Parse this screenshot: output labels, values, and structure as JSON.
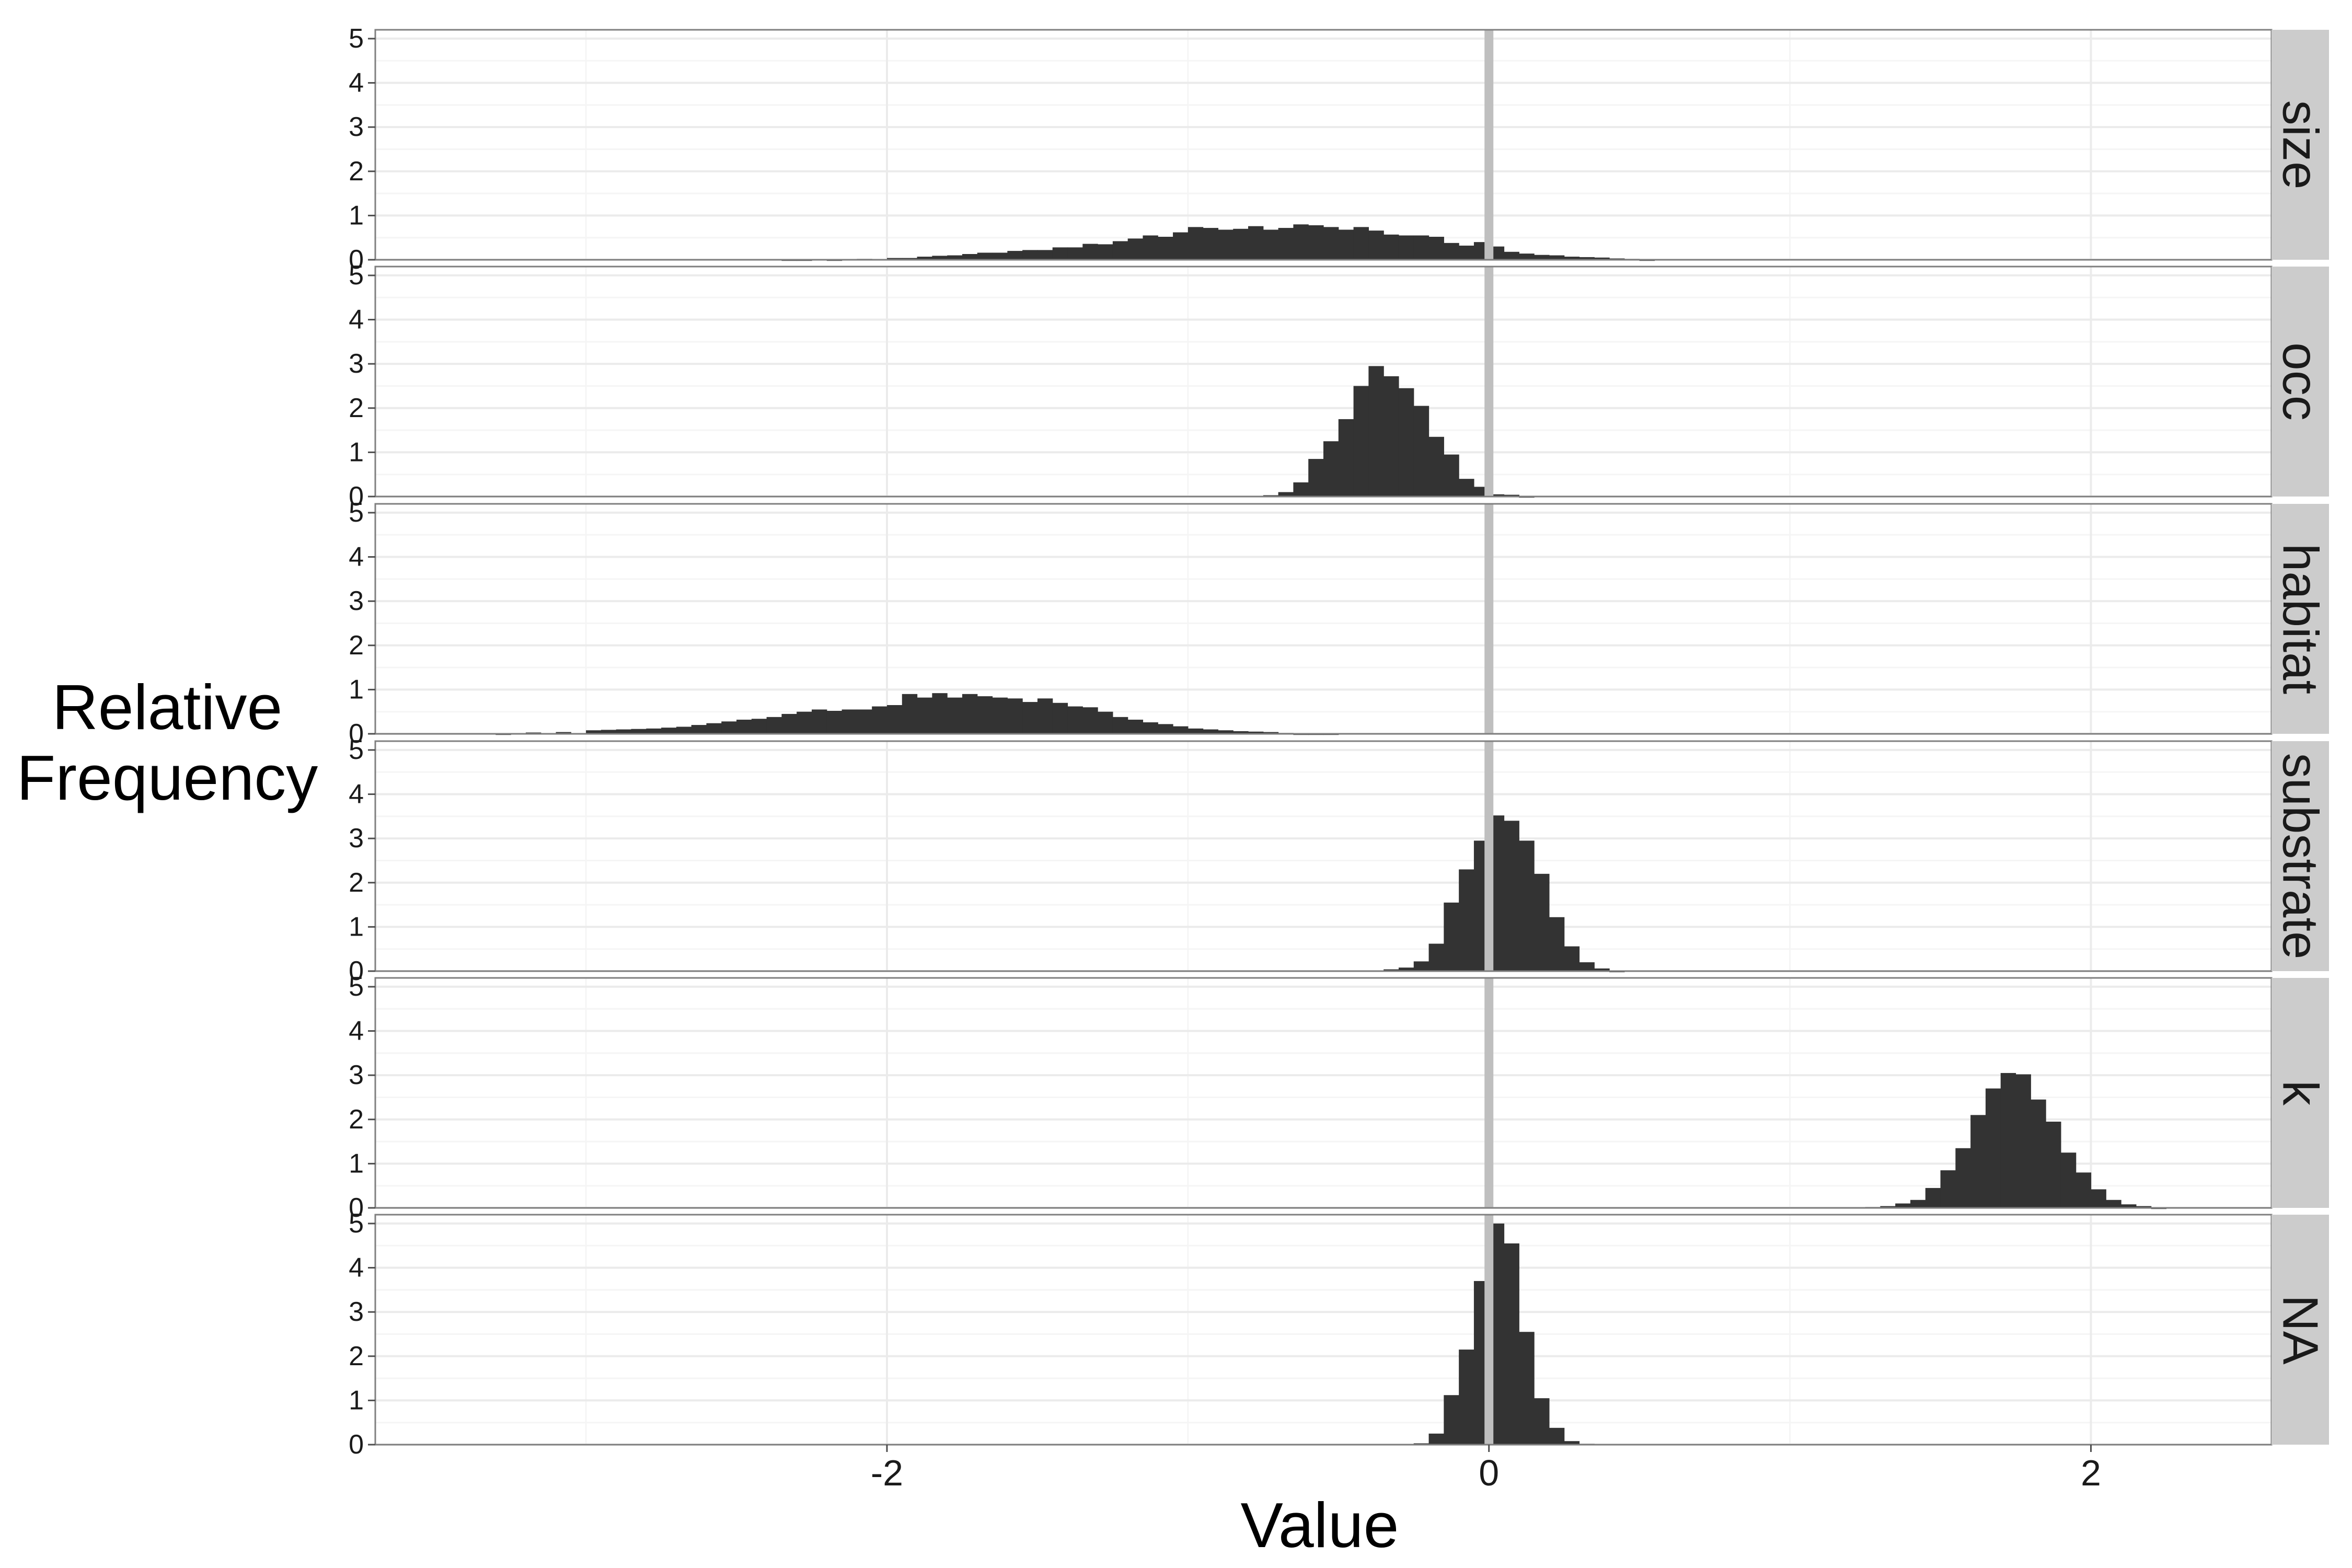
{
  "chart_data": {
    "type": "histogram",
    "facet_layout": "stacked vertically, shared x axis",
    "xlabel": "Value",
    "ylabel": "Relative Frequency",
    "xlim": [
      -3.7,
      2.6
    ],
    "ylim": [
      0,
      5.2
    ],
    "x_ticks": [
      -2,
      0,
      2
    ],
    "y_ticks": [
      0,
      1,
      2,
      3,
      4,
      5
    ],
    "reference_line_x": 0,
    "bin_width": 0.05,
    "grid": true,
    "colors": {
      "bars": "#333333",
      "reference_line": "#bfbfbf",
      "strip_background": "#cccccc",
      "grid_major": "#ebebeb",
      "grid_minor": "#f5f5f5"
    },
    "panels": [
      {
        "label": "size",
        "bins": [
          [
            -2.35,
            0.01
          ],
          [
            -2.3,
            0.01
          ],
          [
            -2.2,
            0.01
          ],
          [
            -2.1,
            0.02
          ],
          [
            -2.0,
            0.04
          ],
          [
            -1.95,
            0.04
          ],
          [
            -1.9,
            0.07
          ],
          [
            -1.85,
            0.09
          ],
          [
            -1.8,
            0.1
          ],
          [
            -1.75,
            0.13
          ],
          [
            -1.7,
            0.16
          ],
          [
            -1.65,
            0.16
          ],
          [
            -1.6,
            0.2
          ],
          [
            -1.55,
            0.22
          ],
          [
            -1.5,
            0.22
          ],
          [
            -1.45,
            0.28
          ],
          [
            -1.4,
            0.28
          ],
          [
            -1.35,
            0.36
          ],
          [
            -1.3,
            0.35
          ],
          [
            -1.25,
            0.42
          ],
          [
            -1.2,
            0.48
          ],
          [
            -1.15,
            0.55
          ],
          [
            -1.1,
            0.52
          ],
          [
            -1.05,
            0.62
          ],
          [
            -1.0,
            0.74
          ],
          [
            -0.95,
            0.72
          ],
          [
            -0.9,
            0.68
          ],
          [
            -0.85,
            0.7
          ],
          [
            -0.8,
            0.76
          ],
          [
            -0.75,
            0.68
          ],
          [
            -0.7,
            0.72
          ],
          [
            -0.65,
            0.8
          ],
          [
            -0.6,
            0.78
          ],
          [
            -0.55,
            0.74
          ],
          [
            -0.5,
            0.68
          ],
          [
            -0.45,
            0.74
          ],
          [
            -0.4,
            0.66
          ],
          [
            -0.35,
            0.57
          ],
          [
            -0.3,
            0.55
          ],
          [
            -0.25,
            0.55
          ],
          [
            -0.2,
            0.52
          ],
          [
            -0.15,
            0.38
          ],
          [
            -0.1,
            0.32
          ],
          [
            -0.05,
            0.4
          ],
          [
            0.0,
            0.3
          ],
          [
            0.05,
            0.18
          ],
          [
            0.1,
            0.14
          ],
          [
            0.15,
            0.11
          ],
          [
            0.2,
            0.1
          ],
          [
            0.25,
            0.07
          ],
          [
            0.3,
            0.06
          ],
          [
            0.35,
            0.05
          ],
          [
            0.4,
            0.03
          ],
          [
            0.45,
            0.02
          ],
          [
            0.5,
            0.01
          ]
        ]
      },
      {
        "label": "occ",
        "bins": [
          [
            -0.75,
            0.03
          ],
          [
            -0.7,
            0.1
          ],
          [
            -0.65,
            0.32
          ],
          [
            -0.6,
            0.85
          ],
          [
            -0.55,
            1.25
          ],
          [
            -0.5,
            1.75
          ],
          [
            -0.45,
            2.5
          ],
          [
            -0.4,
            2.95
          ],
          [
            -0.35,
            2.72
          ],
          [
            -0.3,
            2.45
          ],
          [
            -0.25,
            2.05
          ],
          [
            -0.2,
            1.35
          ],
          [
            -0.15,
            0.95
          ],
          [
            -0.1,
            0.4
          ],
          [
            -0.05,
            0.22
          ],
          [
            0.0,
            0.05
          ],
          [
            0.05,
            0.04
          ],
          [
            0.1,
            0.01
          ]
        ]
      },
      {
        "label": "habitat",
        "bins": [
          [
            -3.3,
            0.01
          ],
          [
            -3.2,
            0.03
          ],
          [
            -3.1,
            0.04
          ],
          [
            -3.0,
            0.08
          ],
          [
            -2.95,
            0.09
          ],
          [
            -2.9,
            0.1
          ],
          [
            -2.85,
            0.11
          ],
          [
            -2.8,
            0.12
          ],
          [
            -2.75,
            0.14
          ],
          [
            -2.7,
            0.16
          ],
          [
            -2.65,
            0.2
          ],
          [
            -2.6,
            0.24
          ],
          [
            -2.55,
            0.28
          ],
          [
            -2.5,
            0.32
          ],
          [
            -2.45,
            0.34
          ],
          [
            -2.4,
            0.38
          ],
          [
            -2.35,
            0.45
          ],
          [
            -2.3,
            0.5
          ],
          [
            -2.25,
            0.55
          ],
          [
            -2.2,
            0.52
          ],
          [
            -2.15,
            0.55
          ],
          [
            -2.1,
            0.55
          ],
          [
            -2.05,
            0.62
          ],
          [
            -2.0,
            0.65
          ],
          [
            -1.95,
            0.9
          ],
          [
            -1.9,
            0.82
          ],
          [
            -1.85,
            0.92
          ],
          [
            -1.8,
            0.82
          ],
          [
            -1.75,
            0.9
          ],
          [
            -1.7,
            0.85
          ],
          [
            -1.65,
            0.82
          ],
          [
            -1.6,
            0.8
          ],
          [
            -1.55,
            0.72
          ],
          [
            -1.5,
            0.8
          ],
          [
            -1.45,
            0.7
          ],
          [
            -1.4,
            0.62
          ],
          [
            -1.35,
            0.6
          ],
          [
            -1.3,
            0.5
          ],
          [
            -1.25,
            0.38
          ],
          [
            -1.2,
            0.32
          ],
          [
            -1.15,
            0.26
          ],
          [
            -1.1,
            0.22
          ],
          [
            -1.05,
            0.17
          ],
          [
            -1.0,
            0.12
          ],
          [
            -0.95,
            0.1
          ],
          [
            -0.9,
            0.08
          ],
          [
            -0.85,
            0.06
          ],
          [
            -0.8,
            0.05
          ],
          [
            -0.75,
            0.04
          ],
          [
            -0.7,
            0.02
          ],
          [
            -0.65,
            0.01
          ],
          [
            -0.6,
            0.01
          ],
          [
            -0.55,
            0.01
          ]
        ]
      },
      {
        "label": "substrate",
        "bins": [
          [
            -0.35,
            0.04
          ],
          [
            -0.3,
            0.08
          ],
          [
            -0.25,
            0.22
          ],
          [
            -0.2,
            0.62
          ],
          [
            -0.15,
            1.55
          ],
          [
            -0.1,
            2.3
          ],
          [
            -0.05,
            2.95
          ],
          [
            0.0,
            3.52
          ],
          [
            0.05,
            3.4
          ],
          [
            0.1,
            2.95
          ],
          [
            0.15,
            2.2
          ],
          [
            0.2,
            1.22
          ],
          [
            0.25,
            0.56
          ],
          [
            0.3,
            0.2
          ],
          [
            0.35,
            0.06
          ],
          [
            0.4,
            0.01
          ]
        ]
      },
      {
        "label": "k",
        "bins": [
          [
            1.25,
            0.02
          ],
          [
            1.3,
            0.04
          ],
          [
            1.35,
            0.1
          ],
          [
            1.4,
            0.18
          ],
          [
            1.45,
            0.45
          ],
          [
            1.5,
            0.85
          ],
          [
            1.55,
            1.35
          ],
          [
            1.6,
            2.1
          ],
          [
            1.65,
            2.7
          ],
          [
            1.7,
            3.05
          ],
          [
            1.75,
            3.02
          ],
          [
            1.8,
            2.45
          ],
          [
            1.85,
            1.95
          ],
          [
            1.9,
            1.25
          ],
          [
            1.95,
            0.8
          ],
          [
            2.0,
            0.42
          ],
          [
            2.05,
            0.18
          ],
          [
            2.1,
            0.08
          ],
          [
            2.15,
            0.04
          ],
          [
            2.2,
            0.01
          ]
        ]
      },
      {
        "label": "NA",
        "bins": [
          [
            -0.25,
            0.03
          ],
          [
            -0.2,
            0.25
          ],
          [
            -0.15,
            1.12
          ],
          [
            -0.1,
            2.15
          ],
          [
            -0.05,
            3.7
          ],
          [
            0.0,
            5.0
          ],
          [
            0.05,
            4.55
          ],
          [
            0.1,
            2.55
          ],
          [
            0.15,
            1.05
          ],
          [
            0.2,
            0.38
          ],
          [
            0.25,
            0.08
          ],
          [
            0.3,
            0.02
          ]
        ]
      }
    ]
  }
}
